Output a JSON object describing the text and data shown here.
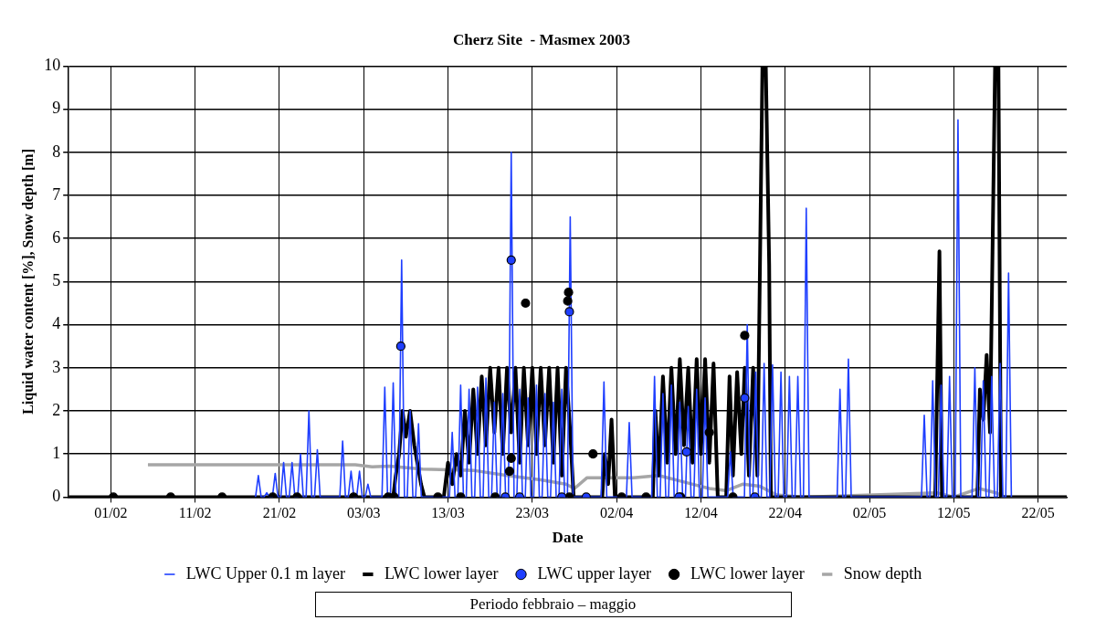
{
  "chart_data": {
    "type": "line",
    "title": "Cherz Site  - Masmex 2003",
    "xlabel": "Date",
    "ylabel": "Liquid water content [%], Snow depth [m]",
    "xlim": [
      "--01-27",
      "--05-25T09:36"
    ],
    "xticks": [
      {
        "value": "--02-01",
        "label": "01/02"
      },
      {
        "value": "--02-11",
        "label": "11/02"
      },
      {
        "value": "--02-21",
        "label": "21/02"
      },
      {
        "value": "--03-03",
        "label": "03/03"
      },
      {
        "value": "--03-13",
        "label": "13/03"
      },
      {
        "value": "--03-23",
        "label": "23/03"
      },
      {
        "value": "--04-02",
        "label": "02/04"
      },
      {
        "value": "--04-12",
        "label": "12/04"
      },
      {
        "value": "--04-22",
        "label": "22/04"
      },
      {
        "value": "--05-02",
        "label": "02/05"
      },
      {
        "value": "--05-12",
        "label": "12/05"
      },
      {
        "value": "--05-22",
        "label": "22/05"
      }
    ],
    "ylim": [
      0,
      10
    ],
    "yticks": [
      0,
      1,
      2,
      3,
      4,
      5,
      6,
      7,
      8,
      9,
      10
    ],
    "grid": true,
    "legend": "bottom",
    "annotations": [
      "Periodo febbraio – maggio"
    ],
    "series": [
      {
        "name": "LWC Upper 0.1 m layer",
        "type": "line",
        "color": "#1f3fff",
        "marker": "none",
        "x": [
          "--02-18T04:00",
          "--02-18T12:00",
          "--02-18T20:00",
          "--02-19T04:00",
          "--02-19T12:00",
          "--02-19T20:00",
          "--02-20T04:00",
          "--02-20T12:00",
          "--02-20T20:00",
          "--02-21T04:00",
          "--02-21T12:00",
          "--02-21T20:00",
          "--02-22T04:00",
          "--02-22T12:00",
          "--02-22T20:00",
          "--02-23T04:00",
          "--02-23T12:00",
          "--02-23T20:00",
          "--02-24T04:00",
          "--02-24T12:00",
          "--02-24T20:00",
          "--02-25T04:00",
          "--02-25T12:00",
          "--02-25T20:00",
          "--02-28T04:00",
          "--02-28T12:00",
          "--02-28T20:00",
          "--03-01T04:00",
          "--03-01T12:00",
          "--03-01T20:00",
          "--03-02T04:00",
          "--03-02T12:00",
          "--03-02T20:00",
          "--03-03T04:00",
          "--03-03T12:00",
          "--03-03T20:00",
          "--03-05T04:00",
          "--03-05T12:00",
          "--03-05T20:00",
          "--03-06T04:00",
          "--03-06T12:00",
          "--03-06T20:00",
          "--03-07T04:00",
          "--03-07T12:00",
          "--03-07T20:00",
          "--03-08T04:00",
          "--03-08T12:00",
          "--03-08T20:00",
          "--03-09T04:00",
          "--03-09T12:00",
          "--03-09T20:00",
          "--03-13T04:00",
          "--03-13T12:00",
          "--03-13T20:00",
          "--03-14T04:00",
          "--03-14T12:00",
          "--03-14T20:00",
          "--03-15T04:00",
          "--03-15T12:00",
          "--03-15T20:00",
          "--03-16T04:00",
          "--03-16T12:00",
          "--03-16T20:00",
          "--03-17T04:00",
          "--03-17T12:00",
          "--03-17T20:00",
          "--03-18T04:00",
          "--03-18T12:00",
          "--03-18T20:00",
          "--03-19T04:00",
          "--03-19T12:00",
          "--03-19T20:00",
          "--03-20T04:00",
          "--03-20T12:00",
          "--03-20T20:00",
          "--03-21T04:00",
          "--03-21T12:00",
          "--03-21T20:00",
          "--03-22T04:00",
          "--03-22T12:00",
          "--03-22T20:00",
          "--03-23T04:00",
          "--03-23T12:00",
          "--03-23T20:00",
          "--03-24T04:00",
          "--03-24T12:00",
          "--03-24T20:00",
          "--03-25T04:00",
          "--03-25T12:00",
          "--03-25T20:00",
          "--03-26T04:00",
          "--03-26T12:00",
          "--03-26T20:00",
          "--03-27T04:00",
          "--03-27T12:00",
          "--03-27T20:00",
          "--03-31T04:00",
          "--03-31T12:00",
          "--03-31T20:00",
          "--04-03T04:00",
          "--04-03T12:00",
          "--04-03T20:00",
          "--04-06T04:00",
          "--04-06T12:00",
          "--04-06T20:00",
          "--04-07T04:00",
          "--04-07T12:00",
          "--04-07T20:00",
          "--04-08T04:00",
          "--04-08T12:00",
          "--04-08T20:00",
          "--04-09T04:00",
          "--04-09T12:00",
          "--04-09T20:00",
          "--04-10T04:00",
          "--04-10T12:00",
          "--04-10T20:00",
          "--04-11T04:00",
          "--04-11T12:00",
          "--04-11T20:00",
          "--04-12T04:00",
          "--04-12T12:00",
          "--04-12T20:00",
          "--04-15T04:00",
          "--04-15T12:00",
          "--04-15T20:00",
          "--04-17T04:00",
          "--04-17T12:00",
          "--04-17T20:00",
          "--04-18T04:00",
          "--04-18T12:00",
          "--04-18T20:00",
          "--04-19T04:00",
          "--04-19T12:00",
          "--04-19T20:00",
          "--04-20T04:00",
          "--04-20T12:00",
          "--04-20T20:00",
          "--04-21T04:00",
          "--04-21T12:00",
          "--04-21T20:00",
          "--04-22T04:00",
          "--04-22T12:00",
          "--04-22T20:00",
          "--04-23T04:00",
          "--04-23T12:00",
          "--04-23T20:00",
          "--04-24T04:00",
          "--04-24T12:00",
          "--04-24T20:00",
          "--04-28T04:00",
          "--04-28T12:00",
          "--04-28T20:00",
          "--04-29T04:00",
          "--04-29T12:00",
          "--04-29T20:00",
          "--05-08T04:00",
          "--05-08T12:00",
          "--05-08T20:00",
          "--05-09T04:00",
          "--05-09T12:00",
          "--05-09T20:00",
          "--05-10T04:00",
          "--05-10T12:00",
          "--05-10T20:00",
          "--05-11T04:00",
          "--05-11T12:00",
          "--05-11T20:00",
          "--05-12T04:00",
          "--05-12T12:00",
          "--05-12T20:00",
          "--05-14T04:00",
          "--05-14T12:00",
          "--05-14T20:00",
          "--05-15T04:00",
          "--05-15T12:00",
          "--05-15T20:00",
          "--05-16T04:00",
          "--05-16T12:00",
          "--05-16T20:00",
          "--05-17T04:00",
          "--05-17T12:00",
          "--05-17T20:00",
          "--05-18T04:00",
          "--05-18T12:00",
          "--05-18T20:00"
        ],
        "values": [
          0,
          0.5,
          0,
          0,
          0.1,
          0,
          0,
          0.55,
          0,
          0,
          0.8,
          0,
          0,
          0.8,
          0,
          0,
          1.0,
          0,
          0,
          2.0,
          0,
          0,
          1.1,
          0,
          0,
          1.3,
          0,
          0,
          0.6,
          0,
          0,
          0.6,
          0,
          0,
          0.3,
          0,
          0,
          2.55,
          0,
          0,
          2.65,
          0,
          0,
          5.5,
          0,
          0,
          2.0,
          0,
          0,
          1.7,
          0,
          0,
          1.5,
          0,
          0,
          2.6,
          0,
          0,
          2.5,
          0,
          0,
          2.55,
          0,
          0,
          2.76,
          0,
          0,
          2.2,
          0,
          0,
          2.4,
          0,
          0,
          8.0,
          0,
          0,
          2.5,
          0,
          0,
          2.3,
          0,
          0,
          2.6,
          0,
          0,
          2.4,
          0,
          0,
          2.2,
          0,
          0,
          2.5,
          0,
          0,
          6.5,
          0,
          0,
          2.67,
          0,
          0,
          1.73,
          0,
          0,
          2.8,
          0,
          0,
          2.4,
          0,
          0,
          2.6,
          0,
          0,
          2.2,
          0,
          0,
          2.1,
          0,
          0,
          2.5,
          0,
          0,
          2.3,
          0,
          0,
          1.05,
          0,
          0,
          4.0,
          0,
          0,
          2.9,
          0,
          0,
          3.1,
          0,
          0,
          3.07,
          0,
          0,
          2.9,
          0,
          0,
          2.8,
          0,
          0,
          2.8,
          0,
          0,
          6.7,
          0,
          0,
          2.5,
          0,
          0,
          3.2,
          0,
          0,
          1.9,
          0,
          0,
          2.7,
          0,
          0,
          2.6,
          0,
          0,
          2.8,
          0,
          0,
          8.75,
          0,
          0,
          3.0,
          0,
          0,
          2.7,
          0,
          0,
          2.8,
          0,
          0,
          3.1,
          0,
          0,
          5.2,
          0
        ]
      },
      {
        "name": "LWC lower layer",
        "type": "line",
        "color": "#000000",
        "marker": "none",
        "x": [
          "--01-27",
          "--03-06T12:00",
          "--03-06T19:12",
          "--03-07T04:48",
          "--03-07T14:24",
          "--03-08T00:00",
          "--03-08T12:00",
          "--03-09T00:00",
          "--03-09T19:12",
          "--03-10T04:48",
          "--03-12T12:00",
          "--03-13T00:00",
          "--03-13T12:00",
          "--03-14T00:00",
          "--03-14T12:00",
          "--03-15T00:00",
          "--03-15T12:00",
          "--03-16T00:00",
          "--03-16T12:00",
          "--03-17T00:00",
          "--03-17T12:00",
          "--03-18T00:00",
          "--03-18T12:00",
          "--03-19T00:00",
          "--03-19T12:00",
          "--03-20T00:00",
          "--03-20T12:00",
          "--03-21T00:00",
          "--03-21T12:00",
          "--03-22T00:00",
          "--03-22T12:00",
          "--03-23T00:00",
          "--03-23T12:00",
          "--03-24T00:00",
          "--03-24T12:00",
          "--03-25T00:00",
          "--03-25T12:00",
          "--03-26T00:00",
          "--03-26T12:00",
          "--03-27T00:00",
          "--03-27T12:00",
          "--03-27T21:36",
          "--03-31T07:12",
          "--03-31T14:24",
          "--04-01T00:00",
          "--04-01T09:36",
          "--04-01T19:12",
          "--04-06T07:12",
          "--04-06T14:24",
          "--04-07T00:00",
          "--04-07T12:00",
          "--04-08T00:00",
          "--04-08T12:00",
          "--04-09T00:00",
          "--04-09T12:00",
          "--04-10T00:00",
          "--04-10T12:00",
          "--04-11T00:00",
          "--04-11T12:00",
          "--04-12T00:00",
          "--04-12T12:00",
          "--04-13T00:00",
          "--04-13T12:00",
          "--04-14T00:00",
          "--04-15T00:00",
          "--04-15T09:36",
          "--04-15T19:12",
          "--04-16T07:12",
          "--04-16T19:12",
          "--04-17T04:48",
          "--04-17T16:48",
          "--04-18T04:48",
          "--04-18T16:48",
          "--04-19T07:12",
          "--04-19T16:48",
          "--04-20T02:24",
          "--04-20T07:12",
          "--05-09T19:12",
          "--05-10T07:12",
          "--05-10T14:24",
          "--05-14T19:12",
          "--05-15T02:24",
          "--05-15T12:00",
          "--05-15T21:36",
          "--05-16T07:12",
          "--05-16T21:36",
          "--05-17T07:12",
          "--05-17T14:24",
          "--05-25T09:36"
        ],
        "values": [
          0,
          0,
          0.5,
          1.0,
          2.0,
          1.4,
          2.0,
          1.2,
          0.3,
          0,
          0,
          0.8,
          0.3,
          1.0,
          0.5,
          2.0,
          0.8,
          2.5,
          1.0,
          2.8,
          1.2,
          3.0,
          1.5,
          3.0,
          1.0,
          3.0,
          1.5,
          3.0,
          0.8,
          3.0,
          1.2,
          3.0,
          1.0,
          3.0,
          1.2,
          3.0,
          0.8,
          3.0,
          0.5,
          3.0,
          1.5,
          0,
          0,
          1.0,
          0.3,
          1.8,
          0,
          0,
          2.0,
          0.5,
          2.8,
          0.8,
          3.0,
          1.0,
          3.2,
          1.2,
          3.0,
          0.8,
          3.2,
          1.0,
          3.2,
          0.8,
          3.1,
          0,
          0,
          2.8,
          0.5,
          2.9,
          1.0,
          3.0,
          0.5,
          3.0,
          0.5,
          10,
          10,
          5.4,
          0,
          0,
          5.7,
          0,
          0,
          2.5,
          1.8,
          3.3,
          1.5,
          10,
          10,
          0,
          0
        ]
      },
      {
        "name": "LWC upper layer",
        "type": "scatter",
        "color": "#1f3fff",
        "marker": "circle",
        "x": [
          "--03-07T09:36",
          "--03-20T12:00",
          "--03-27T09:36",
          "--04-10T07:12",
          "--04-17T04:48",
          "--03-19T19:12",
          "--03-21T12:00",
          "--03-26T12:00",
          "--03-29T09:36",
          "--04-09T09:36",
          "--04-18T09:36"
        ],
        "values": [
          3.5,
          5.5,
          4.3,
          1.05,
          2.3,
          0,
          0,
          0,
          0,
          0,
          0
        ]
      },
      {
        "name": "LWC lower layer",
        "type": "scatter",
        "color": "#000000",
        "marker": "circle",
        "x": [
          "--03-22T04:48",
          "--03-27T04:48",
          "--03-27T07:12",
          "--03-30T04:48",
          "--03-20T12:00",
          "--03-20T07:12",
          "--04-13T00:00",
          "--04-17T04:48",
          "--02-01T07:12",
          "--02-08T02:24",
          "--02-14T04:48",
          "--02-20T04:48",
          "--02-23T02:24",
          "--03-01T19:12",
          "--03-05T21:36",
          "--03-06T14:24",
          "--03-11T19:12",
          "--03-14T12:00",
          "--03-18T14:24",
          "--03-27T09:36",
          "--04-02T14:24",
          "--04-05T12:00",
          "--04-09T14:24",
          "--04-15T19:12"
        ],
        "values": [
          4.5,
          4.55,
          4.75,
          1.0,
          0.9,
          0.6,
          1.5,
          3.75,
          0,
          0,
          0,
          0,
          0,
          0,
          0,
          0,
          0,
          0,
          0,
          0,
          0,
          0,
          0,
          0
        ]
      },
      {
        "name": "Snow depth",
        "type": "line",
        "color": "#a6a6a6",
        "marker": "none",
        "x": [
          "--02-05T09:36",
          "--03-02",
          "--03-04",
          "--03-06",
          "--03-10",
          "--03-16",
          "--03-20",
          "--03-24",
          "--03-27",
          "--03-28",
          "--03-29T12:00",
          "--04-04",
          "--04-07",
          "--04-10",
          "--04-13",
          "--04-15",
          "--04-17",
          "--04-19",
          "--04-21",
          "--04-24",
          "--05-10",
          "--05-12",
          "--05-15",
          "--05-17",
          "--05-18",
          "--05-25T09:36"
        ],
        "values": [
          0.75,
          0.75,
          0.7,
          0.72,
          0.65,
          0.62,
          0.5,
          0.4,
          0.3,
          0.2,
          0.45,
          0.45,
          0.5,
          0.35,
          0.2,
          0.15,
          0.3,
          0.25,
          0.05,
          0,
          0.1,
          0,
          0.2,
          0.1,
          0,
          0
        ]
      }
    ]
  }
}
